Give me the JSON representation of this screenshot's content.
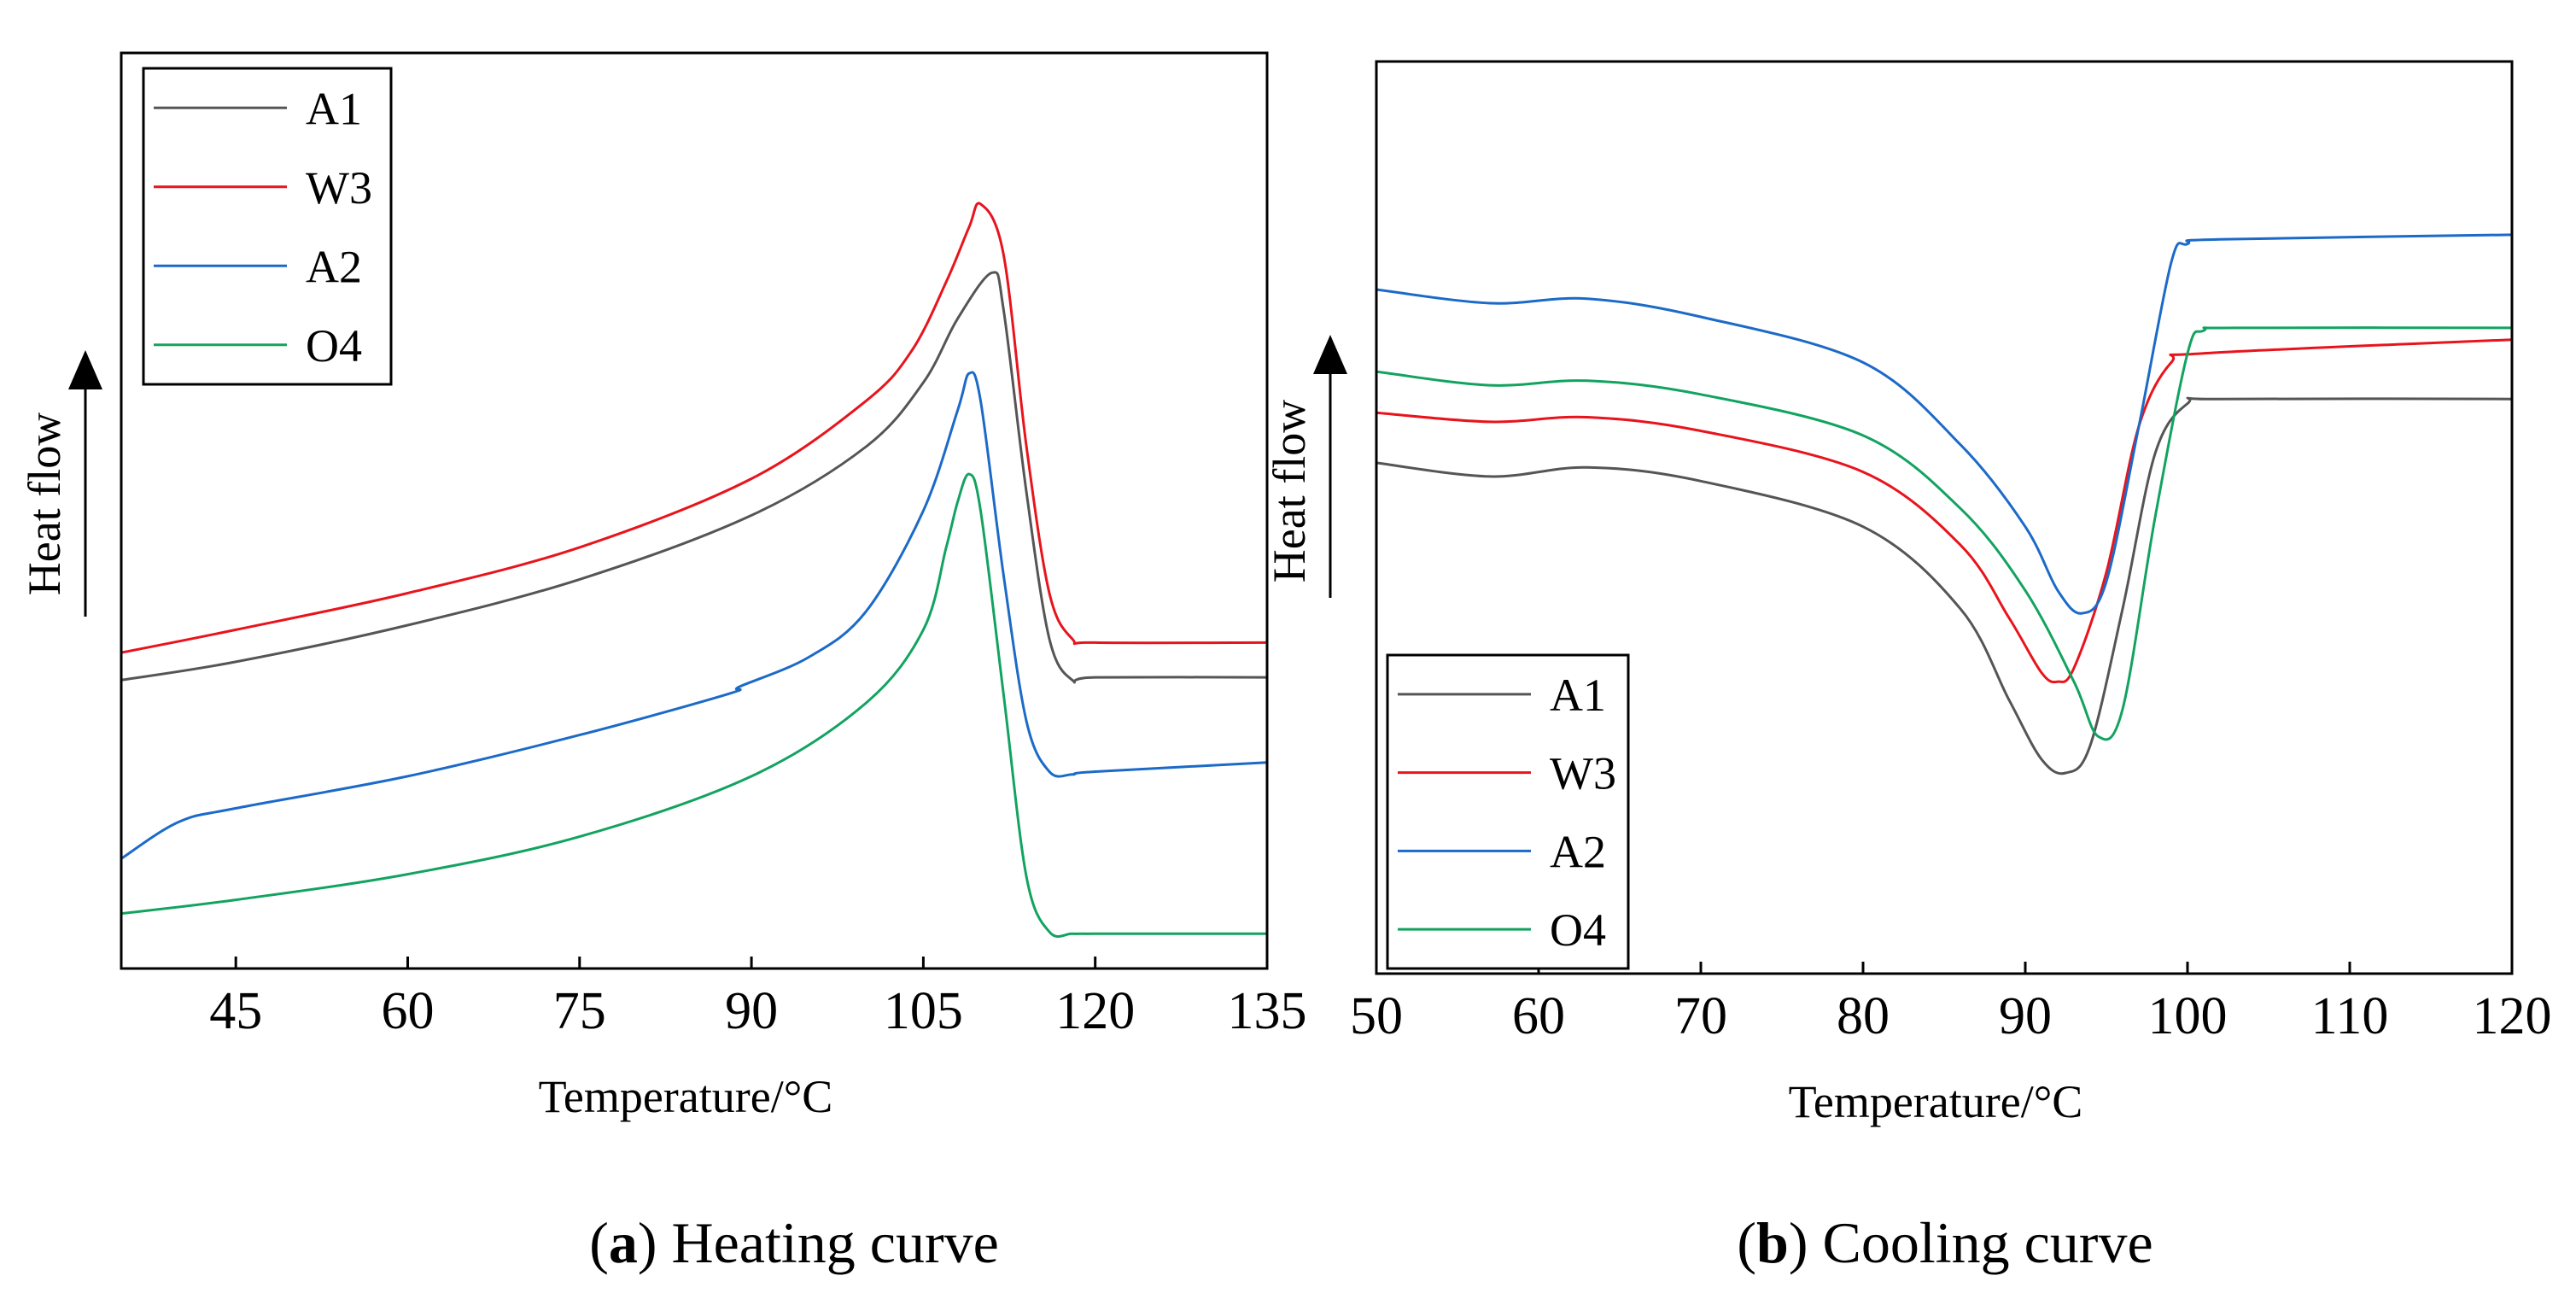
{
  "chart_data": [
    {
      "type": "line",
      "panel": "a",
      "caption_letter": "a",
      "caption_text": "Heating curve",
      "xlabel": "Temperature/°C",
      "ylabel": "Heat flow",
      "xlim": [
        35,
        135
      ],
      "ylim": [
        0,
        100
      ],
      "xticks": [
        45,
        60,
        75,
        90,
        105,
        120,
        135
      ],
      "legend_position": "top-left",
      "series": [
        {
          "name": "A1",
          "color": "#555555",
          "x": [
            35,
            45,
            60,
            75,
            90,
            100,
            105,
            108,
            111,
            112,
            114,
            116,
            118,
            120,
            135
          ],
          "y": [
            31.5,
            33.5,
            37.5,
            42.5,
            49.5,
            57,
            64,
            71,
            76,
            72,
            52,
            36,
            31.5,
            31.8,
            31.8
          ]
        },
        {
          "name": "W3",
          "color": "#e8141c",
          "x": [
            35,
            45,
            60,
            75,
            90,
            100,
            104,
            107,
            109,
            110,
            112,
            114,
            116,
            118,
            120,
            135
          ],
          "y": [
            34.5,
            37,
            41,
            46,
            53.5,
            62,
            67.5,
            75,
            81,
            83.5,
            78,
            57,
            41,
            36,
            35.6,
            35.6
          ]
        },
        {
          "name": "A2",
          "color": "#1c6ac8",
          "x": [
            35,
            40,
            45,
            60,
            75,
            88,
            89,
            95,
            100,
            105,
            108,
            109,
            110,
            112,
            114,
            116,
            118,
            120,
            135
          ],
          "y": [
            12,
            16,
            17.5,
            21,
            25.5,
            30,
            30.8,
            34,
            39,
            50,
            61,
            65,
            62,
            43,
            27,
            21.5,
            21.2,
            21.5,
            22.5
          ]
        },
        {
          "name": "O4",
          "color": "#13a360",
          "x": [
            35,
            45,
            60,
            75,
            90,
            100,
            105,
            107,
            108,
            109,
            110,
            112,
            114,
            116,
            118,
            120,
            135
          ],
          "y": [
            6,
            7.5,
            10.3,
            14.4,
            21,
            29,
            37,
            46,
            51,
            54,
            50,
            30,
            10,
            4,
            3.8,
            3.8,
            3.8
          ]
        }
      ]
    },
    {
      "type": "line",
      "panel": "b",
      "caption_letter": "b",
      "caption_text": "Cooling curve",
      "xlabel": "Temperature/°C",
      "ylabel": "Heat flow",
      "xlim": [
        50,
        120
      ],
      "ylim": [
        0,
        100
      ],
      "xticks": [
        50,
        60,
        70,
        80,
        90,
        100,
        110,
        120
      ],
      "legend_position": "bottom-left",
      "series": [
        {
          "name": "A1",
          "color": "#555555",
          "x": [
            50,
            57,
            63,
            70,
            80,
            86,
            89,
            91,
            92.5,
            94,
            96,
            98,
            100,
            102,
            120
          ],
          "y": [
            56,
            54.5,
            55.5,
            54,
            49,
            40,
            30,
            23.5,
            22,
            25,
            40,
            57,
            62.5,
            63,
            63
          ]
        },
        {
          "name": "W3",
          "color": "#e8141c",
          "x": [
            50,
            57,
            63,
            70,
            80,
            86,
            89,
            91,
            92,
            93,
            95,
            97,
            99,
            101,
            120
          ],
          "y": [
            61.5,
            60.5,
            61,
            59.5,
            55,
            47,
            39,
            33,
            32,
            33.5,
            44,
            60,
            67,
            68,
            69.5
          ]
        },
        {
          "name": "A2",
          "color": "#1c6ac8",
          "x": [
            50,
            57,
            63,
            70,
            80,
            86,
            90,
            92,
            93.5,
            95,
            97,
            99,
            100,
            102,
            120
          ],
          "y": [
            75,
            73.5,
            74,
            72,
            67,
            58,
            49,
            42,
            39.5,
            43,
            60,
            78,
            80,
            80.5,
            81
          ]
        },
        {
          "name": "O4",
          "color": "#13a360",
          "x": [
            50,
            57,
            63,
            70,
            80,
            86,
            90,
            93,
            94.5,
            96,
            98,
            100,
            101,
            103,
            120
          ],
          "y": [
            66,
            64.5,
            65,
            63.5,
            59,
            51,
            42,
            32,
            26,
            29,
            50,
            68,
            70.5,
            70.8,
            70.8
          ]
        }
      ]
    }
  ]
}
